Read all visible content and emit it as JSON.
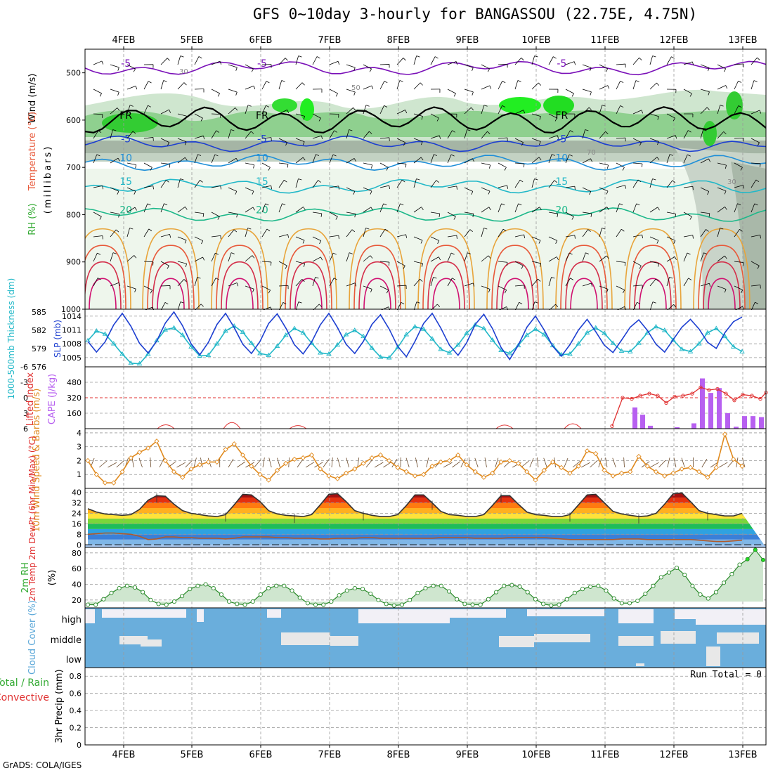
{
  "title": "GFS 0~10day 3-hourly for BANGASSOU (22.75E, 4.75N)",
  "credit": "GrADS: COLA/IGES",
  "colors": {
    "rh": "#33cc33",
    "temperature": "#e8593a",
    "wind": "#000000",
    "thickness": "#22b8c8",
    "slp": "#1d3fd1",
    "lifted_index": "#e03030",
    "cape": "#b760f0",
    "wind10m": "#e08a1e",
    "temp2m": "#e03030",
    "rh2m": "#33cc33",
    "cloud": "#5aa7d8",
    "precip_total": "#33cc33",
    "precip_conv": "#e03030"
  },
  "chart_data": [
    {
      "panel": "upper-air",
      "type": "heatmap",
      "x_dates": [
        "4FEB",
        "5FEB",
        "6FEB",
        "7FEB",
        "8FEB",
        "9FEB",
        "10FEB",
        "11FEB",
        "12FEB",
        "13FEB"
      ],
      "ylabel_parts": [
        "RH (%)",
        "Temperature (°C)",
        "Wind (m/s)"
      ],
      "ylabel_unit": "(millibars)",
      "yticks": [
        500,
        600,
        700,
        800,
        900,
        1000
      ],
      "ylim": [
        450,
        1000
      ],
      "temperature_contours": [
        {
          "label": "-5",
          "pressure": 490,
          "color": "#7a10b8"
        },
        {
          "label": "FR",
          "pressure": 600,
          "color": "#000000"
        },
        {
          "label": "-5",
          "pressure": 650,
          "color": "#1d3fd1"
        },
        {
          "label": "10",
          "pressure": 690,
          "color": "#1f8fd8"
        },
        {
          "label": "15",
          "pressure": 740,
          "color": "#22b8c8"
        },
        {
          "label": "20",
          "pressure": 800,
          "color": "#1db88a"
        }
      ],
      "rh_labels": [
        "30",
        "50",
        "70"
      ]
    },
    {
      "panel": "thickness-slp",
      "type": "line",
      "ylabel_left": "1000-500mb Thickness (dm)",
      "ylabel_right": "SLP (mb)",
      "thickness_ticks": [
        576,
        579,
        582,
        585
      ],
      "slp_ticks": [
        1005,
        1008,
        1011,
        1014
      ],
      "ylim_thickness": [
        576,
        585
      ],
      "ylim_slp": [
        1003,
        1015.5
      ],
      "series": [
        {
          "name": "SLP (mb)",
          "values": [
            1008.5,
            1006.2,
            1008.4,
            1012.1,
            1014.6,
            1011.8,
            1008.1,
            1006.0,
            1008.6,
            1012.5,
            1014.9,
            1011.9,
            1008.0,
            1005.6,
            1008.3,
            1012.2,
            1014.6,
            1011.5,
            1007.9,
            1005.9,
            1008.5,
            1012.4,
            1014.5,
            1011.4,
            1007.8,
            1005.8,
            1008.4,
            1012.1,
            1014.6,
            1011.5,
            1007.9,
            1005.9,
            1008.5,
            1012.2,
            1014.3,
            1011.2,
            1007.4,
            1005.2,
            1008.5,
            1012.4,
            1014.6,
            1011.4,
            1007.7,
            1005.5,
            1008.2,
            1012.2,
            1014.4,
            1011.3,
            1007.2,
            1004.6,
            1007.7,
            1011.6,
            1014.0,
            1011.0,
            1007.5,
            1005.3,
            1007.8,
            1011.0,
            1013.3,
            1010.6,
            1007.7,
            1006.1,
            1008.8,
            1011.6,
            1013.2,
            1010.9,
            1007.9,
            1006.2,
            1008.9,
            1011.6,
            1013.3,
            1011.2,
            1008.3,
            1007.0,
            1010.4,
            1012.8,
            1013.8
          ]
        },
        {
          "name": "1000-500mb Thickness (dm)",
          "values": [
            580.3,
            581.9,
            581.4,
            579.8,
            578.1,
            576.6,
            576.5,
            578.1,
            580.3,
            582.1,
            582.4,
            581.2,
            579.3,
            577.8,
            577.9,
            579.8,
            581.9,
            582.7,
            581.7,
            579.9,
            578.2,
            577.9,
            579.4,
            581.2,
            582.3,
            581.6,
            579.9,
            578.3,
            578.1,
            579.6,
            581.3,
            582.0,
            581.0,
            579.1,
            577.6,
            577.5,
            579.2,
            581.3,
            582.6,
            582.2,
            580.6,
            578.9,
            578.3,
            579.6,
            581.5,
            582.9,
            582.3,
            580.4,
            578.7,
            578.2,
            579.5,
            581.2,
            582.2,
            581.3,
            579.5,
            578.0,
            578.1,
            579.8,
            581.6,
            582.4,
            581.5,
            579.9,
            578.6,
            578.5,
            579.9,
            581.6,
            582.6,
            582.0,
            580.4,
            578.9,
            578.5,
            579.8,
            581.6,
            582.3,
            581.0,
            579.3,
            578.5
          ]
        }
      ]
    },
    {
      "panel": "instability",
      "type": "bar",
      "ylabel_left": "Lifted Index",
      "ylabel_right": "CAPE (J/kg)",
      "li_ticks": [
        -6,
        -3,
        0,
        3,
        6
      ],
      "cape_ticks": [
        160,
        320,
        480
      ],
      "ylim_li": [
        6,
        -6
      ],
      "ylim_cape": [
        0,
        640
      ],
      "series": [
        {
          "name": "Lifted Index",
          "values": [
            6.0,
            5.8,
            6.0,
            6.0,
            6.0,
            6.0,
            6.0,
            6.0,
            6.0,
            6.0,
            6.0,
            5.4,
            4.8,
            6.0,
            6.0,
            6.0,
            6.0,
            6.0,
            6.0,
            6.0,
            6.0,
            6.0,
            6.0,
            6.0,
            6.0,
            6.0,
            6.0,
            6.0,
            6.0,
            6.0,
            6.0,
            6.0,
            6.0,
            6.0,
            6.0,
            6.0,
            6.0,
            6.0,
            6.0,
            6.0,
            6.0,
            4.4,
            3.0,
            3.5,
            6.0,
            6.0,
            6.0,
            6.0,
            6.0,
            6.0,
            6.0,
            6.0,
            6.0,
            6.0,
            6.0,
            6.0,
            6.0,
            6.0,
            6.0,
            6.0,
            6.0,
            6.0,
            6.0,
            6.0,
            6.0,
            6.0,
            6.0,
            6.0,
            6.0,
            6.0,
            6.0,
            6.0,
            6.0,
            6.0,
            6.0,
            6.0,
            6.0,
            6.0,
            6.0,
            6.0,
            6.0,
            6.0,
            6.0,
            6.0,
            6.0,
            6.0,
            6.0,
            6.0,
            6.0,
            6.0,
            6.0,
            6.0,
            6.0,
            6.0,
            6.0,
            6.0,
            6.0,
            6.0
          ]
        },
        {
          "name": "CAPE (J/kg)",
          "values": [
            0,
            0,
            0,
            0,
            0,
            0,
            0,
            0,
            0,
            0,
            0,
            0,
            0,
            0,
            0,
            0,
            0,
            0,
            0,
            0,
            0,
            0,
            0,
            0,
            0,
            0,
            0,
            0,
            0,
            0,
            0,
            0,
            0,
            0,
            0,
            0,
            0,
            0,
            0,
            0,
            0,
            0,
            0,
            0,
            0,
            0,
            0,
            0,
            0,
            0,
            0,
            0,
            0,
            0,
            0,
            0,
            0,
            0,
            0,
            0,
            0,
            0,
            0,
            0,
            0,
            0,
            0,
            0,
            0,
            0,
            0,
            0,
            0,
            0,
            0,
            0,
            0,
            0,
            0,
            0,
            0,
            0,
            0,
            0,
            0,
            0,
            0,
            0,
            0,
            0,
            0,
            0,
            0,
            0,
            0,
            0,
            0,
            0
          ]
        }
      ]
    },
    {
      "panel": "wind10m",
      "type": "line",
      "ylabel": "10m Wind Speed & Barbs (m/s)",
      "yticks": [
        1,
        2,
        3,
        4
      ],
      "ylim": [
        0,
        4.3
      ],
      "series": [
        {
          "name": "10m Wind Speed (m/s)",
          "values": [
            2.0,
            1.0,
            0.4,
            0.4,
            1.2,
            2.2,
            2.6,
            2.9,
            3.4,
            2.0,
            1.2,
            0.8,
            1.4,
            1.7,
            1.9,
            1.9,
            2.8,
            3.2,
            2.4,
            1.6,
            1.0,
            0.6,
            1.3,
            1.8,
            2.1,
            2.2,
            2.4,
            1.4,
            0.9,
            0.7,
            1.1,
            1.4,
            1.8,
            2.2,
            2.4,
            2.0,
            1.5,
            1.2,
            0.9,
            1.0,
            1.6,
            1.9,
            2.0,
            2.4,
            1.7,
            1.2,
            0.8,
            1.1,
            1.9,
            2.0,
            1.8,
            1.2,
            0.6,
            1.3,
            1.9,
            1.5,
            1.1,
            1.6,
            2.7,
            2.5,
            1.3,
            0.9,
            1.1,
            1.2,
            2.3,
            1.6,
            1.2,
            0.9,
            1.1,
            1.4,
            1.5,
            1.2,
            0.8,
            1.5,
            3.9,
            2.1,
            1.6
          ]
        }
      ]
    },
    {
      "panel": "temp2m",
      "type": "area",
      "ylabel": "2m Temp 2m DewPt (6hr Min/Max) (°C)",
      "yticks": [
        0,
        8,
        16,
        24,
        32,
        40
      ],
      "ylim": [
        -2,
        43
      ],
      "series": [
        {
          "name": "2m Temp (°C)",
          "values": [
            27.5,
            25.0,
            23.5,
            23.0,
            22.5,
            23.0,
            27.0,
            34.0,
            37.5,
            37.0,
            31.0,
            26.0,
            24.0,
            23.0,
            22.0,
            21.5,
            23.0,
            30.5,
            38.5,
            38.0,
            33.0,
            26.0,
            23.5,
            22.5,
            22.0,
            21.5,
            23.0,
            30.5,
            38.5,
            39.0,
            33.0,
            26.0,
            24.0,
            22.5,
            21.5,
            21.5,
            23.0,
            30.0,
            38.0,
            38.0,
            32.0,
            25.5,
            23.0,
            22.5,
            21.5,
            21.5,
            23.0,
            30.0,
            37.5,
            37.5,
            31.0,
            25.0,
            23.0,
            22.5,
            21.5,
            21.5,
            23.0,
            30.5,
            38.0,
            38.5,
            32.0,
            25.5,
            23.5,
            22.5,
            21.5,
            22.0,
            24.0,
            31.0,
            39.0,
            39.5,
            33.0,
            26.0,
            24.0,
            23.0,
            22.0,
            22.0,
            24.0
          ]
        },
        {
          "name": "2m DewPt (°C)",
          "values": [
            8.0,
            8.5,
            9.0,
            9.0,
            8.5,
            8.0,
            6.5,
            4.0,
            4.5,
            6.0,
            6.0,
            5.5,
            5.5,
            5.0,
            5.0,
            5.0,
            4.5,
            5.0,
            6.0,
            6.0,
            6.0,
            6.0,
            5.5,
            5.5,
            5.0,
            5.0,
            5.0,
            4.5,
            4.5,
            5.0,
            5.0,
            5.0,
            5.5,
            5.5,
            5.0,
            5.0,
            5.0,
            5.0,
            5.0,
            5.0,
            5.0,
            5.5,
            5.5,
            5.5,
            5.5,
            5.0,
            5.0,
            5.0,
            5.0,
            5.5,
            5.5,
            5.5,
            5.5,
            5.5,
            5.0,
            4.5,
            4.0,
            4.0,
            4.0,
            4.0,
            4.0,
            4.0,
            4.5,
            4.5,
            4.5,
            4.0,
            4.0,
            4.0,
            4.0,
            4.0,
            4.0,
            3.5,
            3.0,
            2.5,
            2.5,
            3.0,
            3.5
          ]
        }
      ]
    },
    {
      "panel": "rh2m",
      "type": "area",
      "ylabel": "2m RH",
      "yunit": "(%)",
      "yticks": [
        20,
        40,
        60,
        80
      ],
      "ylim": [
        10,
        87
      ],
      "series": [
        {
          "name": "2m RH (%)",
          "values": [
            14,
            14,
            21,
            29,
            35,
            38,
            36,
            30,
            20,
            15,
            14,
            18,
            25,
            34,
            38,
            40,
            35,
            27,
            18,
            15,
            14,
            18,
            27,
            35,
            38,
            38,
            32,
            23,
            16,
            14,
            14,
            18,
            26,
            32,
            35,
            34,
            28,
            20,
            15,
            13,
            14,
            20,
            29,
            35,
            38,
            38,
            31,
            21,
            15,
            14,
            14,
            21,
            30,
            38,
            39,
            37,
            30,
            21,
            15,
            13,
            14,
            21,
            29,
            34,
            37,
            38,
            32,
            22,
            16,
            16,
            19,
            28,
            38,
            49,
            55,
            61,
            52,
            38,
            27,
            22,
            30,
            42,
            53,
            65,
            72,
            84,
            71
          ]
        }
      ]
    },
    {
      "panel": "cloud-cover",
      "type": "heatmap",
      "ylabel": "Cloud Cover (%)",
      "rows": [
        "high",
        "middle",
        "low"
      ]
    },
    {
      "panel": "precip",
      "type": "bar",
      "ylabel": "3hr Precip (mm)",
      "legend": [
        "Total / Rain",
        "Convective"
      ],
      "yticks": [
        0,
        0.2,
        0.4,
        0.6,
        0.8
      ],
      "ylim": [
        0,
        0.9
      ],
      "run_total": "Run Total = 0",
      "values": []
    }
  ]
}
